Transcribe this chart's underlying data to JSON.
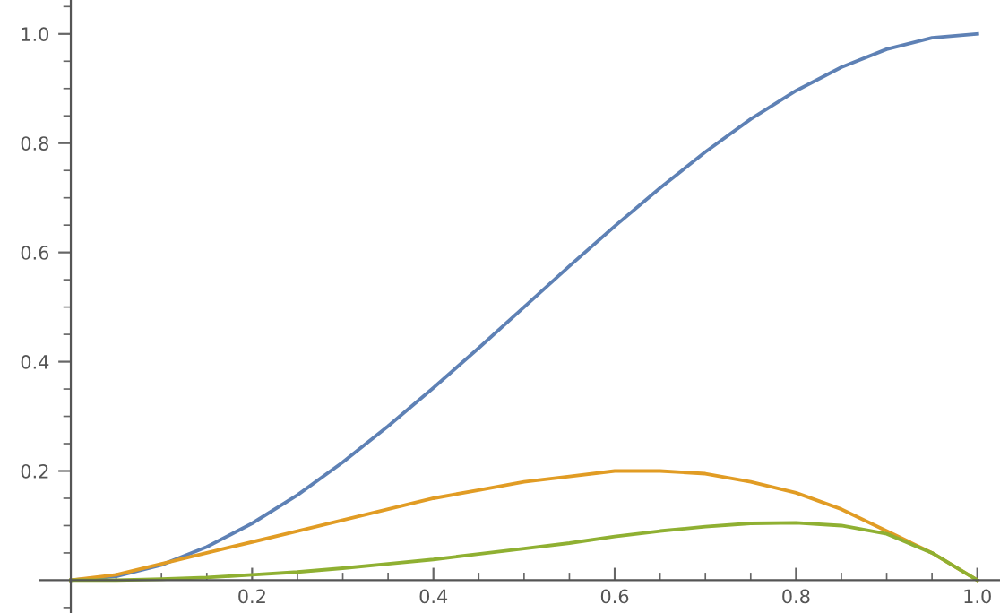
{
  "chart_data": {
    "type": "line",
    "x": [
      0,
      0.05,
      0.1,
      0.15,
      0.2,
      0.25,
      0.3,
      0.35,
      0.4,
      0.45,
      0.5,
      0.55,
      0.6,
      0.65,
      0.7,
      0.75,
      0.8,
      0.85,
      0.9,
      0.95,
      1.0
    ],
    "series": [
      {
        "color": "#5e81b5",
        "values": [
          0,
          0.007,
          0.028,
          0.061,
          0.104,
          0.156,
          0.216,
          0.282,
          0.352,
          0.425,
          0.5,
          0.575,
          0.648,
          0.718,
          0.784,
          0.844,
          0.896,
          0.939,
          0.972,
          0.993,
          1.0
        ]
      },
      {
        "color": "#e19c24",
        "values": [
          0,
          0.01,
          0.03,
          0.05,
          0.07,
          0.09,
          0.11,
          0.13,
          0.15,
          0.165,
          0.18,
          0.19,
          0.2,
          0.2,
          0.195,
          0.18,
          0.16,
          0.13,
          0.09,
          0.05,
          0
        ]
      },
      {
        "color": "#8fb032",
        "values": [
          0,
          0,
          0.002,
          0.005,
          0.01,
          0.015,
          0.022,
          0.03,
          0.038,
          0.048,
          0.058,
          0.068,
          0.08,
          0.09,
          0.098,
          0.104,
          0.105,
          0.1,
          0.085,
          0.05,
          0
        ]
      }
    ],
    "xlim": [
      -0.034,
      1.025
    ],
    "ylim": [
      -0.06,
      1.062
    ],
    "xticks": [
      {
        "value": 0.05,
        "label": null
      },
      {
        "value": 0.1,
        "label": null
      },
      {
        "value": 0.15,
        "label": null
      },
      0.2,
      {
        "value": 0.25,
        "label": null
      },
      {
        "value": 0.3,
        "label": null
      },
      {
        "value": 0.35,
        "label": null
      },
      0.4,
      {
        "value": 0.45,
        "label": null
      },
      {
        "value": 0.5,
        "label": null
      },
      {
        "value": 0.55,
        "label": null
      },
      0.6,
      {
        "value": 0.65,
        "label": null
      },
      {
        "value": 0.7,
        "label": null
      },
      {
        "value": 0.75,
        "label": null
      },
      0.8,
      {
        "value": 0.85,
        "label": null
      },
      {
        "value": 0.9,
        "label": null
      },
      {
        "value": 0.95,
        "label": null
      },
      {
        "value": 1.0,
        "label": "1.0"
      }
    ],
    "yticks": [
      {
        "value": -0.05,
        "label": null
      },
      {
        "value": 0.05,
        "label": null
      },
      {
        "value": 0.1,
        "label": null
      },
      {
        "value": 0.15,
        "label": null
      },
      0.2,
      {
        "value": 0.25,
        "label": null
      },
      {
        "value": 0.3,
        "label": null
      },
      {
        "value": 0.35,
        "label": null
      },
      0.4,
      {
        "value": 0.45,
        "label": null
      },
      {
        "value": 0.5,
        "label": null
      },
      {
        "value": 0.55,
        "label": null
      },
      0.6,
      {
        "value": 0.65,
        "label": null
      },
      {
        "value": 0.7,
        "label": null
      },
      {
        "value": 0.75,
        "label": null
      },
      0.8,
      {
        "value": 0.85,
        "label": null
      },
      {
        "value": 0.9,
        "label": null
      },
      {
        "value": 0.95,
        "label": null
      },
      {
        "value": 1.0,
        "label": "1.0"
      },
      {
        "value": 1.05,
        "label": null
      }
    ],
    "grid": false,
    "marker": "none",
    "line_style": "solid"
  }
}
